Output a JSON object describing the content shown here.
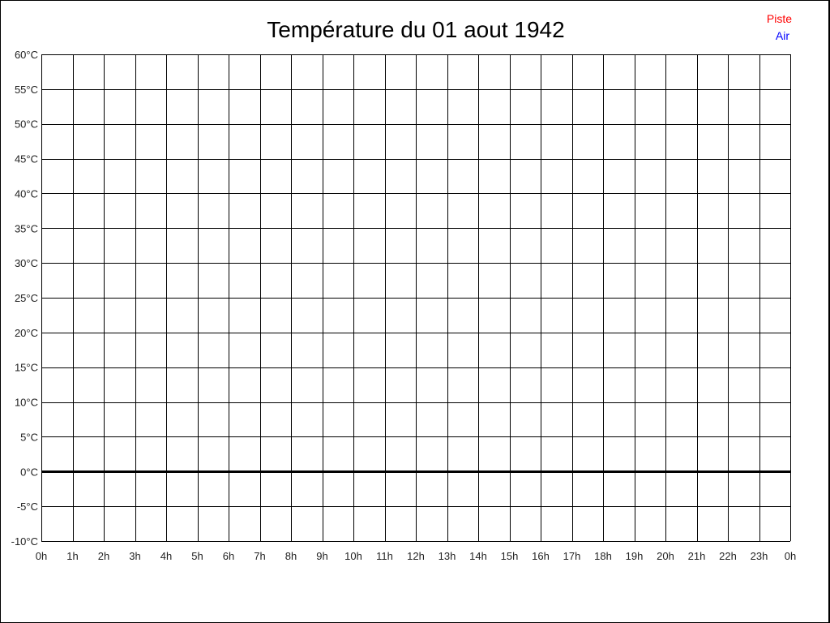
{
  "chart_data": {
    "type": "line",
    "title": "Température du 01 aout 1942",
    "xlabel": "",
    "ylabel": "",
    "x_tick_labels": [
      "0h",
      "1h",
      "2h",
      "3h",
      "4h",
      "5h",
      "6h",
      "7h",
      "8h",
      "9h",
      "10h",
      "11h",
      "12h",
      "13h",
      "14h",
      "15h",
      "16h",
      "17h",
      "18h",
      "19h",
      "20h",
      "21h",
      "22h",
      "23h",
      "0h"
    ],
    "y_tick_labels": [
      "60°C",
      "55°C",
      "50°C",
      "45°C",
      "40°C",
      "35°C",
      "30°C",
      "25°C",
      "20°C",
      "15°C",
      "10°C",
      "5°C",
      "0°C",
      "-5°C",
      "-10°C"
    ],
    "y_ticks": [
      60,
      55,
      50,
      45,
      40,
      35,
      30,
      25,
      20,
      15,
      10,
      5,
      0,
      -5,
      -10
    ],
    "xlim": [
      0,
      24
    ],
    "ylim": [
      -10,
      60
    ],
    "grid": true,
    "legend_placement": "top-right",
    "series": [
      {
        "name": "Piste",
        "color": "#ff0000",
        "values": []
      },
      {
        "name": "Air",
        "color": "#0000ff",
        "values": []
      }
    ]
  }
}
